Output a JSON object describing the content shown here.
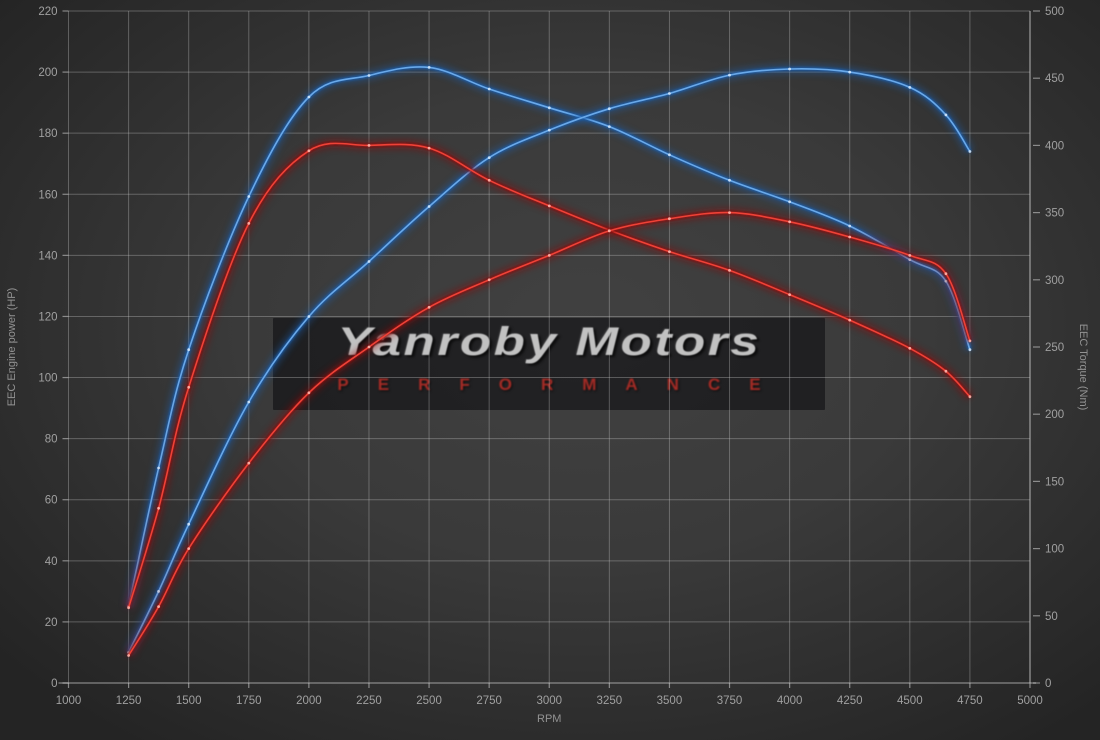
{
  "watermark": {
    "line1": "Yanroby Motors",
    "line2": "PERFORMANCE",
    "title_color": "#c1c1c1",
    "subtitle_color": "#a62c26"
  },
  "colors": {
    "background_center": "#414141",
    "background_edge": "#242424",
    "grid": "rgba(212,212,212,0.32)",
    "axis_line": "rgba(215,215,215,0.55)",
    "tick_text": "#a0a0a0",
    "axis_title_text": "#939393"
  },
  "chart_data": {
    "type": "line",
    "xlabel": "RPM",
    "x_ticks": [
      1000,
      1250,
      1500,
      1750,
      2000,
      2250,
      2500,
      2750,
      3000,
      3250,
      3500,
      3750,
      4000,
      4250,
      4500,
      4750,
      5000
    ],
    "left_axis": {
      "label": "EEC Engine power (HP)",
      "range": [
        0,
        220
      ],
      "ticks": [
        0,
        20,
        40,
        60,
        80,
        100,
        120,
        140,
        160,
        180,
        200,
        220
      ]
    },
    "right_axis": {
      "label": "EEC Torque (Nm)",
      "range": [
        0,
        500
      ],
      "ticks": [
        0,
        50,
        100,
        150,
        200,
        250,
        300,
        350,
        400,
        450,
        500
      ]
    },
    "x_range": [
      1000,
      5000
    ],
    "grid": true,
    "legend": "none",
    "series": [
      {
        "name": "tuned-torque-nm",
        "axis": "right",
        "color_core": "#6aa9e9",
        "color_glow": "#1d5fae",
        "color_marker": "#cfe4f9",
        "peak": "458 Nm @ 2500 rpm",
        "x": [
          1250,
          1375,
          1500,
          1750,
          2000,
          2250,
          2500,
          2750,
          3000,
          3250,
          3500,
          3750,
          4000,
          4250,
          4500,
          4650,
          4750
        ],
        "y": [
          57,
          160,
          248,
          362,
          436,
          452,
          458,
          442,
          428,
          414,
          393,
          374,
          358,
          340,
          315,
          299,
          248
        ]
      },
      {
        "name": "tuned-power-hp",
        "axis": "left",
        "color_core": "#6aa9e9",
        "color_glow": "#1d5fae",
        "color_marker": "#cfe4f9",
        "peak": "201 HP @ 4000 rpm",
        "x": [
          1250,
          1375,
          1500,
          1750,
          2000,
          2250,
          2500,
          2750,
          3000,
          3250,
          3500,
          3750,
          4000,
          4250,
          4500,
          4650,
          4750
        ],
        "y": [
          10,
          30,
          52,
          92,
          120,
          138,
          156,
          172,
          181,
          188,
          193,
          199,
          201,
          200,
          195,
          186,
          174
        ]
      },
      {
        "name": "original-torque-nm",
        "axis": "right",
        "color_core": "#ee4237",
        "color_glow": "#8e1010",
        "color_marker": "#ffb4aa",
        "peak": "400 Nm @ 2250 rpm",
        "x": [
          1250,
          1375,
          1500,
          1750,
          2000,
          2250,
          2500,
          2750,
          3000,
          3250,
          3500,
          3750,
          4000,
          4250,
          4500,
          4650,
          4750
        ],
        "y": [
          56,
          130,
          220,
          342,
          396,
          400,
          398,
          374,
          355,
          337,
          321,
          307,
          289,
          270,
          249,
          232,
          213
        ]
      },
      {
        "name": "original-power-hp",
        "axis": "left",
        "color_core": "#ee4237",
        "color_glow": "#8e1010",
        "color_marker": "#ffb4aa",
        "peak": "154 HP @ 3750 rpm",
        "x": [
          1250,
          1375,
          1500,
          1750,
          2000,
          2250,
          2500,
          2750,
          3000,
          3250,
          3500,
          3750,
          4000,
          4250,
          4500,
          4650,
          4750
        ],
        "y": [
          9,
          25,
          44,
          72,
          95,
          110,
          123,
          132,
          140,
          148,
          152,
          154,
          151,
          146,
          140,
          134,
          112
        ]
      }
    ]
  }
}
